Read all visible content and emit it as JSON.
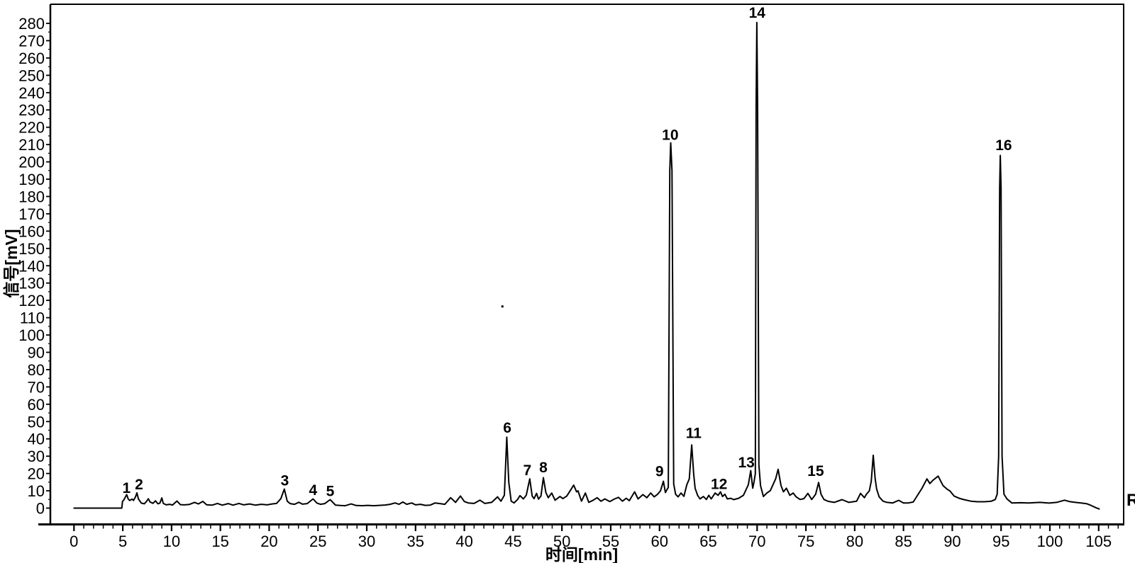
{
  "figure": {
    "right_edge_label": "R",
    "background_color": "#ffffff",
    "trace_color": "#000000",
    "axis_color": "#000000"
  },
  "chart_data": {
    "type": "line",
    "title": "",
    "xlabel": "时间[min]",
    "ylabel": "信号[mV]",
    "xlim": [
      0,
      105
    ],
    "ylim": [
      0,
      280
    ],
    "grid": false,
    "legend": null,
    "x_tick_interval": 5,
    "x_minor_tick_interval": 1,
    "y_tick_interval": 10,
    "y_minor_tick_interval": 5,
    "x_ticks": [
      0,
      5,
      10,
      15,
      20,
      25,
      30,
      35,
      40,
      45,
      50,
      55,
      60,
      65,
      70,
      75,
      80,
      85,
      90,
      95,
      100,
      105
    ],
    "y_ticks": [
      0,
      10,
      20,
      30,
      40,
      50,
      60,
      70,
      80,
      90,
      100,
      110,
      120,
      130,
      140,
      150,
      160,
      170,
      180,
      190,
      200,
      210,
      220,
      230,
      240,
      250,
      260,
      270,
      280
    ],
    "peaks": [
      {
        "label": "1",
        "time_min": 5.4,
        "height_mv": 7.8
      },
      {
        "label": "2",
        "time_min": 6.45,
        "height_mv": 8.8
      },
      {
        "label": "3",
        "time_min": 21.55,
        "height_mv": 11.0
      },
      {
        "label": "4",
        "time_min": 24.5,
        "height_mv": 5.3
      },
      {
        "label": "5",
        "time_min": 26.25,
        "height_mv": 4.9
      },
      {
        "label": "6",
        "time_min": 44.35,
        "height_mv": 41.0
      },
      {
        "label": "7",
        "time_min": 46.7,
        "height_mv": 16.9
      },
      {
        "label": "8",
        "time_min": 48.1,
        "height_mv": 17.6
      },
      {
        "label": "9",
        "time_min": 60.4,
        "height_mv": 15.5
      },
      {
        "label": "10",
        "time_min": 61.15,
        "height_mv": 211.0
      },
      {
        "label": "11",
        "time_min": 63.3,
        "height_mv": 36.5
      },
      {
        "label": "12",
        "time_min": 66.25,
        "height_mv": 9.4
      },
      {
        "label": "13",
        "time_min": 69.35,
        "height_mv": 21.7
      },
      {
        "label": "14",
        "time_min": 69.97,
        "height_mv": 280.5
      },
      {
        "label": "15",
        "time_min": 76.3,
        "height_mv": 14.8
      },
      {
        "label": "16",
        "time_min": 94.92,
        "height_mv": 203.7
      }
    ],
    "peak_labels": [
      {
        "label": "1",
        "t": 5.38,
        "mv": 11.9
      },
      {
        "label": "2",
        "t": 6.66,
        "mv": 13.9
      },
      {
        "label": "3",
        "t": 21.6,
        "mv": 16.2
      },
      {
        "label": "4",
        "t": 24.5,
        "mv": 10.7
      },
      {
        "label": "5",
        "t": 26.25,
        "mv": 10.1
      },
      {
        "label": "6",
        "t": 44.4,
        "mv": 46.6
      },
      {
        "label": "7",
        "t": 46.45,
        "mv": 22.1
      },
      {
        "label": "8",
        "t": 48.1,
        "mv": 23.7
      },
      {
        "label": "9",
        "t": 60.0,
        "mv": 21.4
      },
      {
        "label": "10",
        "t": 61.1,
        "mv": 215.8
      },
      {
        "label": "11",
        "t": 63.5,
        "mv": 43.5
      },
      {
        "label": "12",
        "t": 66.1,
        "mv": 14.2
      },
      {
        "label": "13",
        "t": 68.9,
        "mv": 26.5
      },
      {
        "label": "14",
        "t": 70.0,
        "mv": 286.4
      },
      {
        "label": "15",
        "t": 76.0,
        "mv": 21.7
      },
      {
        "label": "16",
        "t": 95.27,
        "mv": 209.8
      }
    ],
    "annotations": {
      "stray_dot": {
        "t": 43.9,
        "mv": 116.5
      }
    },
    "series": [
      {
        "name": "chromatogram-trace",
        "points": [
          [
            0,
            0
          ],
          [
            4.9,
            0
          ],
          [
            4.97,
            3.9
          ],
          [
            5.1,
            4.7
          ],
          [
            5.25,
            6.2
          ],
          [
            5.4,
            7.8
          ],
          [
            5.55,
            5.3
          ],
          [
            5.7,
            4.4
          ],
          [
            5.95,
            5.2
          ],
          [
            6.1,
            4.4
          ],
          [
            6.3,
            6.5
          ],
          [
            6.45,
            8.8
          ],
          [
            6.6,
            5.3
          ],
          [
            6.9,
            2.9
          ],
          [
            7.2,
            2.5
          ],
          [
            7.45,
            4.0
          ],
          [
            7.62,
            5.4
          ],
          [
            7.8,
            3.5
          ],
          [
            8.1,
            2.8
          ],
          [
            8.35,
            4.2
          ],
          [
            8.6,
            2.5
          ],
          [
            8.8,
            2.9
          ],
          [
            9.0,
            5.9
          ],
          [
            9.15,
            2.7
          ],
          [
            9.45,
            1.9
          ],
          [
            9.8,
            2.2
          ],
          [
            10.1,
            1.8
          ],
          [
            10.55,
            4.1
          ],
          [
            10.9,
            2.0
          ],
          [
            11.3,
            1.9
          ],
          [
            11.8,
            2.1
          ],
          [
            12.35,
            3.3
          ],
          [
            12.75,
            2.4
          ],
          [
            13.2,
            3.9
          ],
          [
            13.6,
            1.9
          ],
          [
            14.15,
            1.7
          ],
          [
            14.7,
            2.7
          ],
          [
            15.2,
            1.7
          ],
          [
            15.8,
            2.6
          ],
          [
            16.3,
            1.7
          ],
          [
            16.9,
            2.7
          ],
          [
            17.4,
            1.9
          ],
          [
            18.0,
            2.4
          ],
          [
            18.6,
            1.7
          ],
          [
            19.2,
            2.2
          ],
          [
            19.8,
            1.9
          ],
          [
            20.3,
            2.4
          ],
          [
            20.75,
            2.7
          ],
          [
            21.0,
            4.2
          ],
          [
            21.2,
            5.5
          ],
          [
            21.55,
            11.0
          ],
          [
            21.85,
            4.0
          ],
          [
            22.15,
            2.6
          ],
          [
            22.6,
            2.2
          ],
          [
            23.05,
            3.4
          ],
          [
            23.4,
            2.3
          ],
          [
            23.9,
            2.6
          ],
          [
            24.5,
            5.3
          ],
          [
            24.9,
            2.9
          ],
          [
            25.25,
            2.2
          ],
          [
            25.7,
            2.6
          ],
          [
            26.25,
            4.9
          ],
          [
            26.8,
            1.7
          ],
          [
            27.3,
            1.5
          ],
          [
            27.8,
            1.4
          ],
          [
            28.4,
            2.4
          ],
          [
            28.9,
            1.5
          ],
          [
            29.5,
            1.4
          ],
          [
            30.1,
            1.6
          ],
          [
            30.7,
            1.4
          ],
          [
            31.3,
            1.6
          ],
          [
            31.9,
            1.8
          ],
          [
            32.4,
            2.2
          ],
          [
            32.9,
            3.0
          ],
          [
            33.3,
            2.2
          ],
          [
            33.7,
            3.5
          ],
          [
            34.1,
            2.2
          ],
          [
            34.6,
            3.0
          ],
          [
            35.0,
            1.9
          ],
          [
            35.5,
            2.2
          ],
          [
            36.0,
            1.6
          ],
          [
            36.5,
            1.7
          ],
          [
            37.0,
            3.0
          ],
          [
            37.5,
            2.6
          ],
          [
            38.0,
            2.2
          ],
          [
            38.6,
            6.0
          ],
          [
            39.1,
            3.3
          ],
          [
            39.6,
            7.0
          ],
          [
            40.0,
            3.8
          ],
          [
            40.4,
            3.0
          ],
          [
            41.0,
            2.7
          ],
          [
            41.6,
            4.6
          ],
          [
            42.1,
            2.7
          ],
          [
            42.8,
            3.3
          ],
          [
            43.4,
            6.5
          ],
          [
            43.75,
            4.0
          ],
          [
            44.1,
            7.5
          ],
          [
            44.35,
            41.0
          ],
          [
            44.55,
            15.0
          ],
          [
            44.8,
            4.0
          ],
          [
            45.1,
            3.0
          ],
          [
            45.45,
            5.0
          ],
          [
            45.7,
            7.2
          ],
          [
            46.05,
            5.3
          ],
          [
            46.35,
            7.5
          ],
          [
            46.7,
            16.9
          ],
          [
            46.95,
            7.0
          ],
          [
            47.15,
            5.5
          ],
          [
            47.4,
            8.5
          ],
          [
            47.6,
            5.2
          ],
          [
            47.85,
            7.0
          ],
          [
            48.1,
            17.6
          ],
          [
            48.35,
            9.0
          ],
          [
            48.6,
            6.0
          ],
          [
            48.95,
            8.7
          ],
          [
            49.3,
            4.6
          ],
          [
            49.8,
            6.7
          ],
          [
            50.1,
            5.5
          ],
          [
            50.5,
            7.0
          ],
          [
            50.9,
            10.5
          ],
          [
            51.2,
            13.3
          ],
          [
            51.5,
            9.4
          ],
          [
            51.65,
            10.0
          ],
          [
            52.0,
            4.0
          ],
          [
            52.4,
            8.7
          ],
          [
            52.75,
            3.3
          ],
          [
            53.2,
            4.6
          ],
          [
            53.6,
            6.0
          ],
          [
            54.0,
            4.0
          ],
          [
            54.4,
            5.3
          ],
          [
            54.9,
            3.8
          ],
          [
            55.4,
            5.3
          ],
          [
            55.8,
            6.2
          ],
          [
            56.2,
            4.0
          ],
          [
            56.6,
            5.7
          ],
          [
            56.9,
            4.3
          ],
          [
            57.45,
            9.4
          ],
          [
            57.8,
            5.3
          ],
          [
            58.3,
            7.8
          ],
          [
            58.7,
            6.0
          ],
          [
            59.1,
            8.7
          ],
          [
            59.45,
            6.5
          ],
          [
            59.8,
            8.0
          ],
          [
            60.1,
            10.0
          ],
          [
            60.4,
            15.5
          ],
          [
            60.6,
            9.0
          ],
          [
            60.75,
            10.5
          ],
          [
            60.9,
            12.0
          ],
          [
            61.05,
            195.0
          ],
          [
            61.15,
            211.0
          ],
          [
            61.28,
            195.0
          ],
          [
            61.45,
            14.0
          ],
          [
            61.65,
            8.0
          ],
          [
            61.9,
            6.5
          ],
          [
            62.2,
            8.7
          ],
          [
            62.5,
            6.8
          ],
          [
            62.8,
            13.5
          ],
          [
            63.05,
            16.9
          ],
          [
            63.3,
            36.5
          ],
          [
            63.5,
            19.6
          ],
          [
            63.65,
            11.5
          ],
          [
            63.9,
            7.4
          ],
          [
            64.15,
            5.3
          ],
          [
            64.5,
            6.7
          ],
          [
            64.8,
            5.0
          ],
          [
            65.05,
            7.4
          ],
          [
            65.3,
            5.3
          ],
          [
            65.7,
            8.7
          ],
          [
            66.0,
            7.4
          ],
          [
            66.25,
            9.4
          ],
          [
            66.45,
            6.7
          ],
          [
            66.7,
            8.0
          ],
          [
            66.95,
            5.3
          ],
          [
            67.3,
            5.7
          ],
          [
            67.6,
            4.9
          ],
          [
            68.1,
            5.7
          ],
          [
            68.6,
            7.4
          ],
          [
            69.1,
            13.5
          ],
          [
            69.35,
            21.7
          ],
          [
            69.55,
            11.5
          ],
          [
            69.68,
            15.0
          ],
          [
            69.82,
            20.0
          ],
          [
            69.9,
            232.0
          ],
          [
            69.97,
            280.5
          ],
          [
            70.05,
            232.0
          ],
          [
            70.18,
            25.0
          ],
          [
            70.35,
            13.0
          ],
          [
            70.65,
            6.7
          ],
          [
            71.0,
            8.7
          ],
          [
            71.35,
            10.1
          ],
          [
            71.9,
            16.9
          ],
          [
            72.15,
            22.4
          ],
          [
            72.45,
            13.0
          ],
          [
            72.7,
            9.4
          ],
          [
            73.0,
            11.5
          ],
          [
            73.35,
            7.4
          ],
          [
            73.7,
            8.7
          ],
          [
            74.0,
            6.5
          ],
          [
            74.4,
            5.0
          ],
          [
            74.8,
            5.5
          ],
          [
            75.2,
            8.5
          ],
          [
            75.6,
            5.0
          ],
          [
            76.0,
            8.0
          ],
          [
            76.3,
            14.8
          ],
          [
            76.55,
            8.0
          ],
          [
            76.85,
            5.0
          ],
          [
            77.3,
            3.9
          ],
          [
            77.9,
            3.3
          ],
          [
            78.7,
            4.9
          ],
          [
            79.4,
            3.3
          ],
          [
            80.2,
            4.0
          ],
          [
            80.6,
            8.5
          ],
          [
            81.0,
            6.0
          ],
          [
            81.2,
            8.0
          ],
          [
            81.5,
            10.0
          ],
          [
            81.7,
            15.5
          ],
          [
            81.9,
            30.5
          ],
          [
            82.1,
            17.0
          ],
          [
            82.25,
            11.0
          ],
          [
            82.5,
            6.5
          ],
          [
            82.9,
            4.0
          ],
          [
            83.3,
            3.3
          ],
          [
            83.9,
            3.0
          ],
          [
            84.5,
            4.5
          ],
          [
            85.0,
            3.0
          ],
          [
            85.5,
            3.0
          ],
          [
            86.0,
            3.5
          ],
          [
            86.9,
            11.5
          ],
          [
            87.4,
            16.9
          ],
          [
            87.7,
            14.2
          ],
          [
            88.0,
            16.0
          ],
          [
            88.55,
            18.5
          ],
          [
            89.05,
            13.0
          ],
          [
            89.5,
            10.8
          ],
          [
            89.75,
            10.0
          ],
          [
            90.2,
            6.9
          ],
          [
            90.7,
            5.7
          ],
          [
            91.2,
            4.9
          ],
          [
            91.9,
            4.0
          ],
          [
            92.6,
            3.7
          ],
          [
            93.3,
            3.7
          ],
          [
            94.0,
            4.0
          ],
          [
            94.4,
            5.0
          ],
          [
            94.6,
            8.0
          ],
          [
            94.75,
            30.0
          ],
          [
            94.85,
            185.0
          ],
          [
            94.92,
            203.7
          ],
          [
            95.0,
            185.0
          ],
          [
            95.1,
            30.0
          ],
          [
            95.3,
            8.0
          ],
          [
            95.6,
            5.3
          ],
          [
            96.1,
            3.0
          ],
          [
            97.0,
            3.1
          ],
          [
            97.8,
            3.0
          ],
          [
            99.0,
            3.3
          ],
          [
            99.9,
            2.9
          ],
          [
            100.7,
            3.3
          ],
          [
            101.5,
            4.6
          ],
          [
            102.0,
            3.8
          ],
          [
            102.6,
            3.3
          ],
          [
            103.2,
            3.0
          ],
          [
            103.8,
            2.5
          ],
          [
            104.2,
            1.6
          ],
          [
            104.7,
            0.3
          ],
          [
            105.05,
            -0.5
          ]
        ]
      }
    ]
  }
}
